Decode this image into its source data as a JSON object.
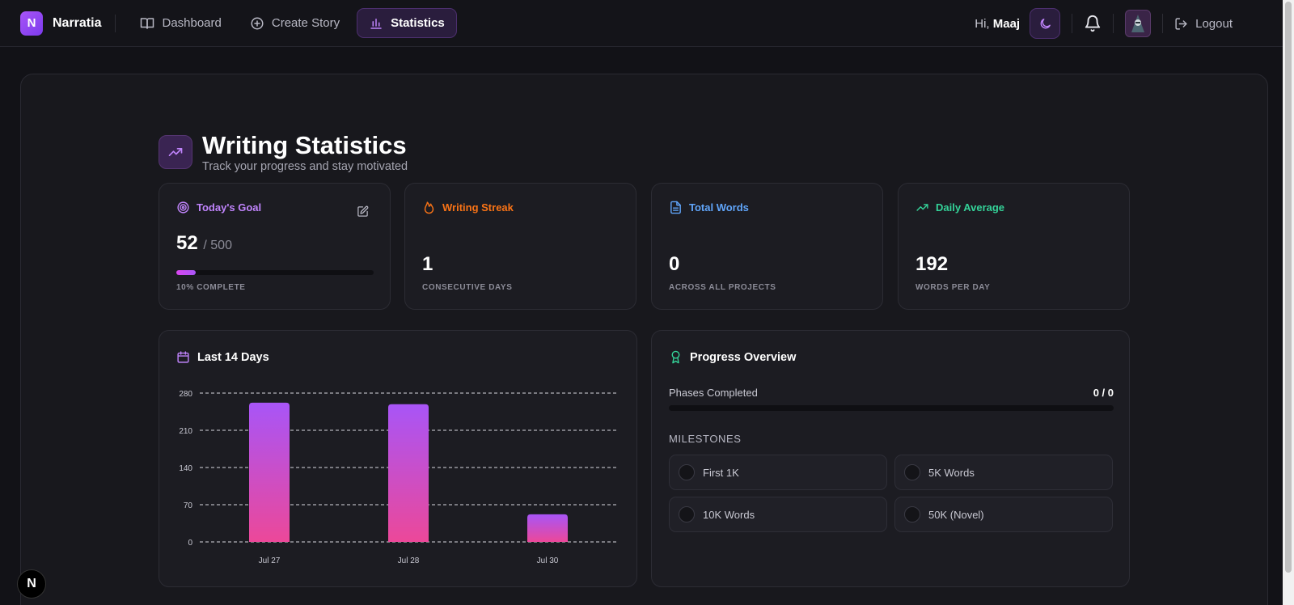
{
  "app": {
    "logo_letter": "N",
    "name": "Narratia"
  },
  "nav": {
    "items": [
      {
        "label": "Dashboard",
        "icon": "book-open-icon"
      },
      {
        "label": "Create Story",
        "icon": "plus-circle-icon"
      },
      {
        "label": "Statistics",
        "icon": "bar-chart-icon",
        "active": true
      }
    ]
  },
  "user": {
    "greeting": "Hi,",
    "name": "Maaj",
    "logout_label": "Logout"
  },
  "page": {
    "title": "Writing Statistics",
    "subtitle": "Track your progress and stay motivated"
  },
  "stats": {
    "goal": {
      "label": "Today's Goal",
      "value": "52",
      "of": "/ 500",
      "caption": "10% COMPLETE",
      "percent": 10,
      "color": "#c084fc"
    },
    "streak": {
      "label": "Writing Streak",
      "value": "1",
      "caption": "CONSECUTIVE DAYS",
      "color": "#f97316"
    },
    "total": {
      "label": "Total Words",
      "value": "0",
      "caption": "ACROSS ALL PROJECTS",
      "color": "#60a5fa"
    },
    "average": {
      "label": "Daily Average",
      "value": "192",
      "caption": "WORDS PER DAY",
      "color": "#34d399"
    }
  },
  "chart_section": {
    "title": "Last 14 Days"
  },
  "chart_data": {
    "type": "bar",
    "categories": [
      "Jul 27",
      "Jul 28",
      "Jul 30"
    ],
    "values": [
      262,
      259,
      52
    ],
    "yticks": [
      280,
      210,
      140,
      70,
      0
    ],
    "ylim": [
      0,
      280
    ],
    "grid": true,
    "gradient": [
      "#a855f7",
      "#ec4899"
    ]
  },
  "progress": {
    "title": "Progress Overview",
    "phases_label": "Phases Completed",
    "phases_value": "0 / 0",
    "milestones_label": "MILESTONES",
    "milestones": [
      "First 1K",
      "5K Words",
      "10K Words",
      "50K (Novel)"
    ]
  },
  "badge": {
    "letter": "N"
  }
}
